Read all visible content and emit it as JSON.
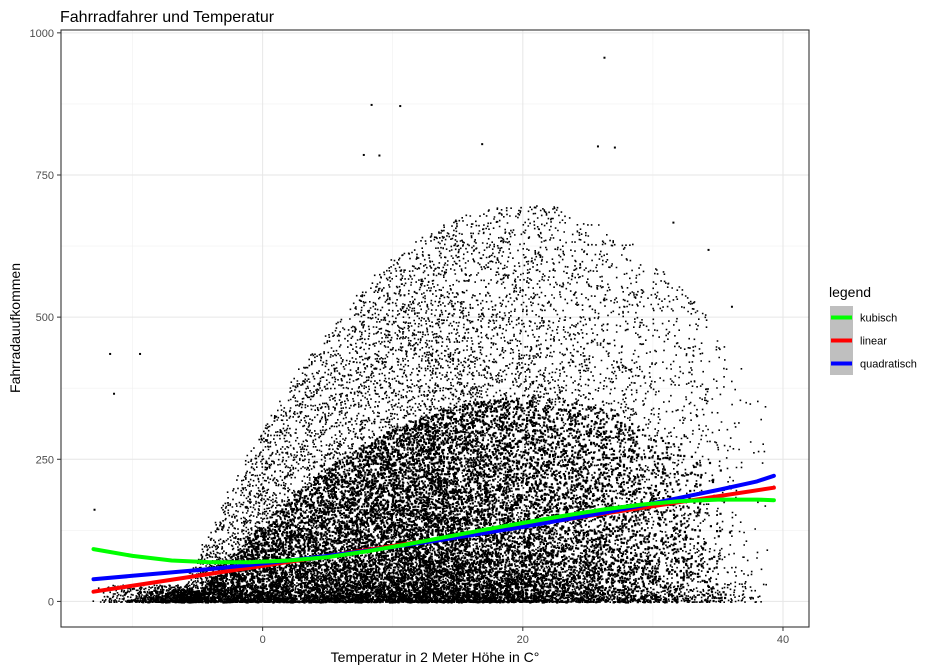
{
  "chart_data": {
    "type": "scatter",
    "title": "Fahrradfahrer und Temperatur",
    "xlabel": "Temperatur in 2 Meter Höhe in C°",
    "ylabel": "Fahrradauufkommen",
    "xlim": [
      -15.5,
      42
    ],
    "ylim": [
      -45,
      1005
    ],
    "x_ticks": [
      0,
      20,
      40
    ],
    "y_ticks": [
      0,
      250,
      500,
      750,
      1000
    ],
    "grid": true,
    "legend": {
      "title": "legend",
      "position": "right",
      "entries": [
        {
          "label": "kubisch",
          "color": "#00ff00"
        },
        {
          "label": "linear",
          "color": "#ff0000"
        },
        {
          "label": "quadratisch",
          "color": "#0000ff"
        }
      ]
    },
    "points": {
      "color": "#000000",
      "x_range": [
        -13,
        39
      ],
      "peak_center_x": 20,
      "notes": "dense point cloud of hourly bicycle counts versus temperature, counts from 0 to about 960",
      "outliers": [
        {
          "x": 26.2,
          "y": 958
        },
        {
          "x": 8.3,
          "y": 875
        },
        {
          "x": 10.5,
          "y": 873
        },
        {
          "x": 7.7,
          "y": 787
        },
        {
          "x": 8.9,
          "y": 786
        },
        {
          "x": 16.8,
          "y": 806
        },
        {
          "x": 25.7,
          "y": 802
        },
        {
          "x": 27.0,
          "y": 800
        },
        {
          "x": -11.8,
          "y": 437
        },
        {
          "x": -9.5,
          "y": 437
        },
        {
          "x": -13.0,
          "y": 163
        },
        {
          "x": -11.5,
          "y": 367
        },
        {
          "x": 31.5,
          "y": 668
        },
        {
          "x": 34.2,
          "y": 620
        },
        {
          "x": 36.0,
          "y": 520
        }
      ]
    },
    "series": [
      {
        "name": "kubisch",
        "color": "#00ff00",
        "x": [
          -13,
          -10,
          -7,
          -4,
          -1,
          2,
          5,
          8,
          11,
          14,
          17,
          20,
          23,
          26,
          29,
          32,
          35,
          38,
          39.3
        ],
        "y": [
          92,
          80,
          72,
          69,
          69,
          72,
          78,
          88,
          100,
          113,
          126,
          138,
          150,
          161,
          170,
          176,
          179,
          179,
          178
        ]
      },
      {
        "name": "linear",
        "color": "#ff0000",
        "x": [
          -13,
          39.3
        ],
        "y": [
          17,
          200
        ]
      },
      {
        "name": "quadratisch",
        "color": "#0000ff",
        "x": [
          -13,
          -10,
          -7,
          -4,
          -1,
          2,
          5,
          8,
          11,
          14,
          17,
          20,
          23,
          26,
          29,
          32,
          35,
          38,
          39.3
        ],
        "y": [
          39,
          45,
          51,
          57,
          64,
          72,
          80,
          89,
          99,
          109,
          120,
          131,
          143,
          155,
          168,
          182,
          196,
          211,
          221
        ]
      }
    ]
  }
}
